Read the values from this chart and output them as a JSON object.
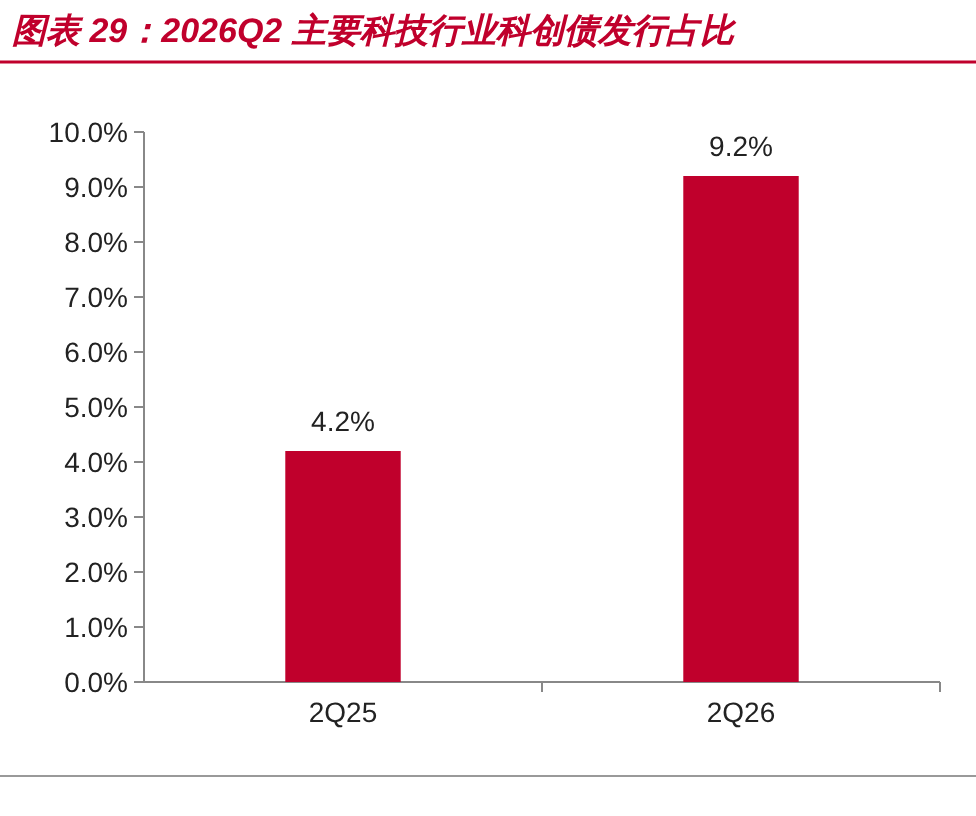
{
  "chart_data": {
    "type": "bar",
    "title": "图表 29：2026Q2 主要科技行业科创债发行占比",
    "categories": [
      "2Q25",
      "2Q26"
    ],
    "values": [
      4.2,
      9.2
    ],
    "color": "#c0002c",
    "value_labels": [
      "4.2%",
      "9.2%"
    ],
    "ylim": [
      0,
      10
    ],
    "yticks": [
      {
        "value": 0,
        "label": "0.0%"
      },
      {
        "value": 1,
        "label": "1.0%"
      },
      {
        "value": 2,
        "label": "2.0%"
      },
      {
        "value": 3,
        "label": "3.0%"
      },
      {
        "value": 4,
        "label": "4.0%"
      },
      {
        "value": 5,
        "label": "5.0%"
      },
      {
        "value": 6,
        "label": "6.0%"
      },
      {
        "value": 7,
        "label": "7.0%"
      },
      {
        "value": 8,
        "label": "8.0%"
      },
      {
        "value": 9,
        "label": "9.0%"
      },
      {
        "value": 10,
        "label": "10.0%"
      }
    ],
    "grid": false
  }
}
